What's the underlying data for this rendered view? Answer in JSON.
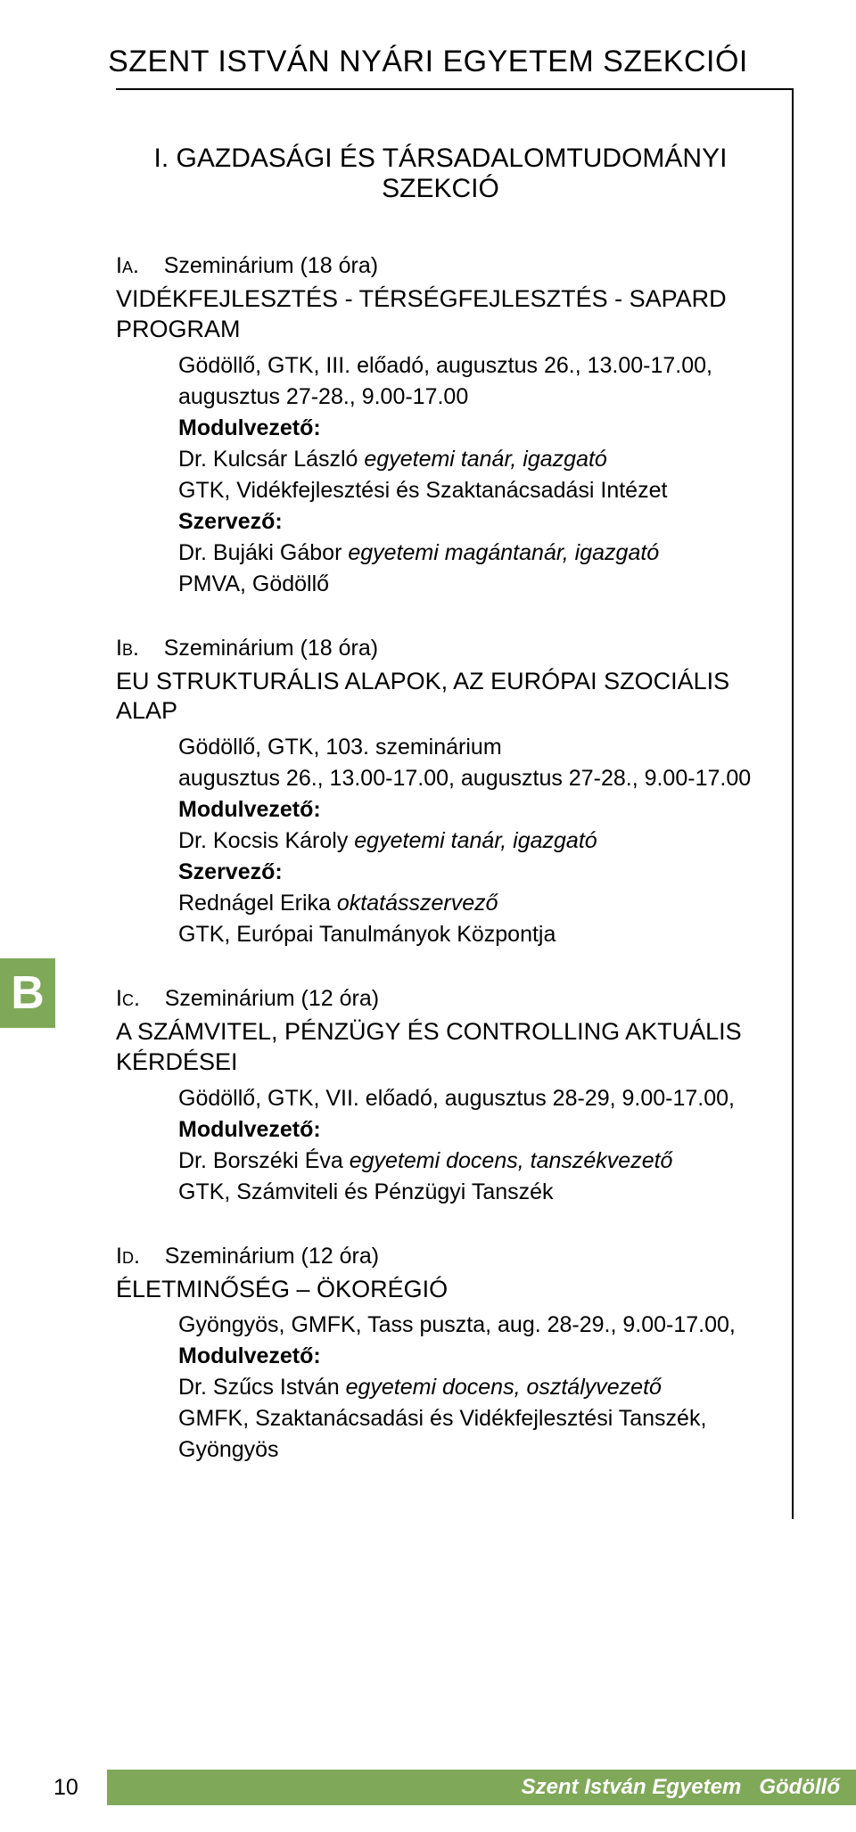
{
  "header": {
    "title": "SZENT ISTVÁN NYÁRI EGYETEM SZEKCIÓI"
  },
  "section": {
    "title": "I. GAZDASÁGI ÉS TÁRSADALOMTUDOMÁNYI SZEKCIÓ"
  },
  "tab": {
    "letter": "B"
  },
  "blocks": {
    "ia": {
      "code": "Ia.",
      "duration": "Szeminárium (18 óra)",
      "title": "VIDÉKFEJLESZTÉS - TÉRSÉGFEJLESZTÉS - SAPARD PROGRAM",
      "where": "Gödöllő, GTK, III. előadó, augusztus 26., 13.00-17.00, augusztus 27‑28., 9.00‑17.00",
      "mod_label": "Modulvezető:",
      "mod_name_pre": "Dr. Kulcsár László ",
      "mod_role": "egyetemi tanár, igazgató",
      "mod_affil": "GTK, Vidékfejlesztési és Szaktanácsadási Intézet",
      "org_label": "Szervező:",
      "org_name_pre": "Dr. Bujáki Gábor ",
      "org_role": "egyetemi magántanár, igazgató",
      "org_affil": "PMVA, Gödöllő"
    },
    "ib": {
      "code": "Ib.",
      "duration": "Szeminárium (18 óra)",
      "title": "EU STRUKTURÁLIS ALAPOK, AZ EURÓPAI SZOCIÁLIS ALAP",
      "where": "Gödöllő, GTK, 103. szeminárium",
      "when": "augusztus 26., 13.00‑17.00, augusztus 27‑28., 9.00‑17.00",
      "mod_label": "Modulvezető:",
      "mod_name_pre": "Dr. Kocsis Károly ",
      "mod_role": "egyetemi tanár, igazgató",
      "org_label": "Szervező:",
      "org_name_pre": "Rednágel Erika ",
      "org_role": "oktatásszervező",
      "org_affil": "GTK, Európai Tanulmányok Központja"
    },
    "ic": {
      "code": "Ic.",
      "duration": "Szeminárium (12 óra)",
      "title": "A SZÁMVITEL, PÉNZÜGY ÉS CONTROLLING AKTUÁLIS KÉRDÉSEI",
      "where": "Gödöllő, GTK, VII. előadó, augusztus 28‑29, 9.00‑17.00,",
      "mod_label": "Modulvezető:",
      "mod_name_pre": "Dr. Borszéki Éva ",
      "mod_role": "egyetemi docens, tanszékvezető",
      "mod_affil": "GTK, Számviteli és Pénzügyi Tanszék"
    },
    "id": {
      "code": "Id.",
      "duration": "Szeminárium (12 óra)",
      "title": "ÉLETMINŐSÉG – ÖKORÉGIÓ",
      "where": "Gyöngyös, GMFK, Tass puszta, aug. 28‑29., 9.00‑17.00,",
      "mod_label": "Modulvezető:",
      "mod_name_pre": "Dr. Szűcs István ",
      "mod_role": "egyetemi docens, osztályvezető",
      "mod_affil": "GMFK, Szaktanácsadási és Vidékfejlesztési Tanszék, Gyöngyös"
    }
  },
  "footer": {
    "pagenum": "10",
    "uni": "Szent István Egyetem",
    "city": "Gödöllő"
  },
  "colors": {
    "accent": "#7fa859",
    "text": "#000000",
    "bg": "#ffffff",
    "footer_text": "#ffffff"
  }
}
